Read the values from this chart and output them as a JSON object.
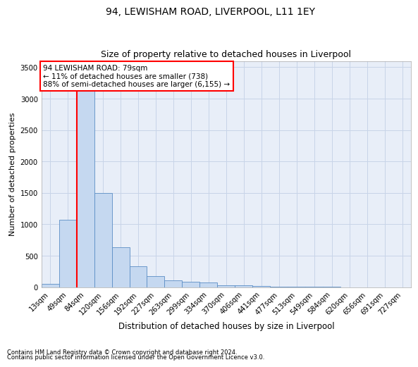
{
  "title1": "94, LEWISHAM ROAD, LIVERPOOL, L11 1EY",
  "title2": "Size of property relative to detached houses in Liverpool",
  "xlabel": "Distribution of detached houses by size in Liverpool",
  "ylabel": "Number of detached properties",
  "footnote1": "Contains HM Land Registry data © Crown copyright and database right 2024.",
  "footnote2": "Contains public sector information licensed under the Open Government Licence v3.0.",
  "bin_labels": [
    "13sqm",
    "49sqm",
    "84sqm",
    "120sqm",
    "156sqm",
    "192sqm",
    "227sqm",
    "263sqm",
    "299sqm",
    "334sqm",
    "370sqm",
    "406sqm",
    "441sqm",
    "477sqm",
    "513sqm",
    "549sqm",
    "584sqm",
    "620sqm",
    "656sqm",
    "691sqm",
    "727sqm"
  ],
  "bar_heights": [
    50,
    1075,
    3450,
    1500,
    640,
    330,
    175,
    110,
    90,
    75,
    35,
    25,
    15,
    10,
    6,
    4,
    3,
    2,
    1,
    1,
    1
  ],
  "bar_color": "#c5d8f0",
  "bar_edge_color": "#5b8ec5",
  "grid_color": "#c8d4e8",
  "background_color": "#e8eef8",
  "red_line_index": 2,
  "annotation_text": "94 LEWISHAM ROAD: 79sqm\n← 11% of detached houses are smaller (738)\n88% of semi-detached houses are larger (6,155) →",
  "ylim": [
    0,
    3600
  ],
  "yticks": [
    0,
    500,
    1000,
    1500,
    2000,
    2500,
    3000,
    3500
  ]
}
